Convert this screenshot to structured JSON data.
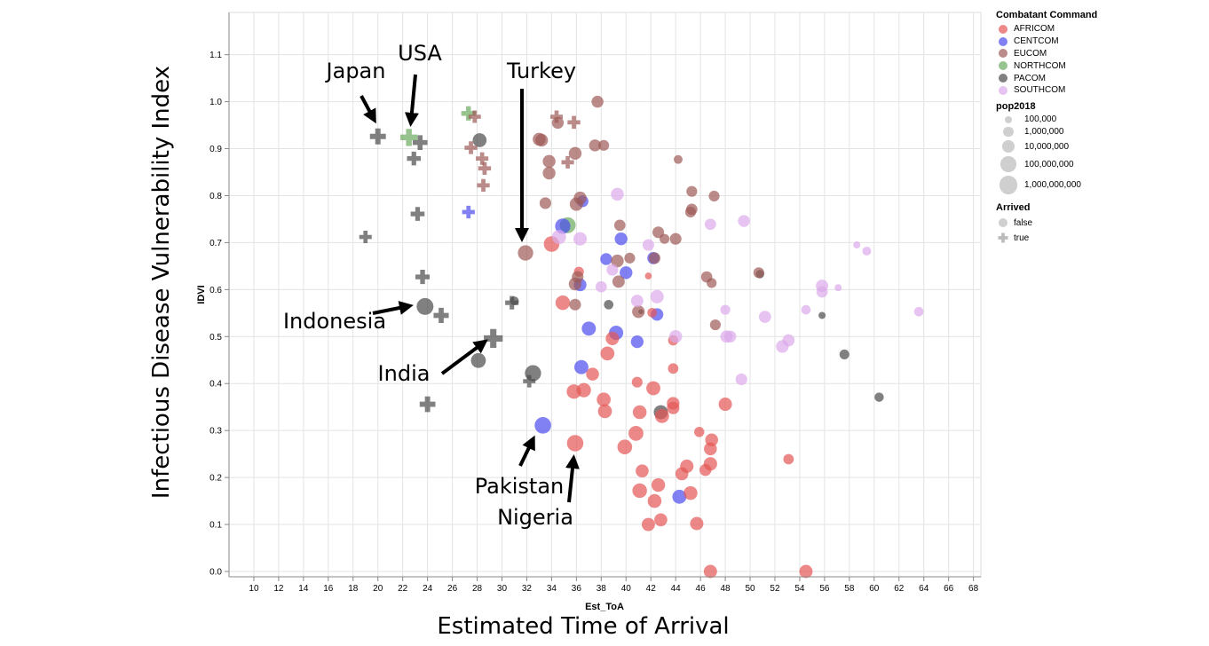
{
  "chart_data": {
    "type": "scatter",
    "xlabel": "Est_ToA",
    "ylabel": "IDVI",
    "xlim": [
      8,
      68.6
    ],
    "ylim": [
      0,
      1.19
    ],
    "xticks": [
      10,
      12,
      14,
      16,
      18,
      20,
      22,
      24,
      26,
      28,
      30,
      32,
      34,
      36,
      38,
      40,
      42,
      44,
      46,
      48,
      50,
      52,
      54,
      56,
      58,
      60,
      62,
      64,
      66,
      68
    ],
    "yticks": [
      "0.0",
      "0.1",
      "0.2",
      "0.3",
      "0.4",
      "0.5",
      "0.6",
      "0.7",
      "0.8",
      "0.9",
      "1.0",
      "1.1"
    ],
    "grid": true,
    "legend_position": "right",
    "color_legend": {
      "title": "Combatant Command",
      "items": [
        {
          "name": "AFRICOM",
          "color": "#e45756"
        },
        {
          "name": "CENTCOM",
          "color": "#4c4cf0"
        },
        {
          "name": "EUCOM",
          "color": "#9c5a55"
        },
        {
          "name": "NORTHCOM",
          "color": "#6aaa5e"
        },
        {
          "name": "PACOM",
          "color": "#4a4a4a"
        },
        {
          "name": "SOUTHCOM",
          "color": "#dcaaea"
        }
      ]
    },
    "size_legend": {
      "title": "pop2018",
      "items": [
        {
          "label": "100,000",
          "value": 100000
        },
        {
          "label": "1,000,000",
          "value": 1000000
        },
        {
          "label": "10,000,000",
          "value": 10000000
        },
        {
          "label": "100,000,000",
          "value": 100000000
        },
        {
          "label": "1,000,000,000",
          "value": 1000000000
        }
      ]
    },
    "shape_legend": {
      "title": "Arrived",
      "items": [
        {
          "label": "false",
          "shape": "circle"
        },
        {
          "label": "true",
          "shape": "cross"
        }
      ]
    },
    "fields": [
      "command",
      "Est_ToA",
      "IDVI",
      "pop2018",
      "arrived"
    ],
    "points": [
      [
        "PACOM",
        20.0,
        0.926,
        126000000,
        true
      ],
      [
        "PACOM",
        23.4,
        0.913,
        51000000,
        true
      ],
      [
        "PACOM",
        22.9,
        0.879,
        23000000,
        true
      ],
      [
        "PACOM",
        23.2,
        0.761,
        24000000,
        true
      ],
      [
        "PACOM",
        19.0,
        0.712,
        5700000,
        true
      ],
      [
        "PACOM",
        23.6,
        0.627,
        32000000,
        true
      ],
      [
        "PACOM",
        25.1,
        0.545,
        69000000,
        true
      ],
      [
        "PACOM",
        29.3,
        0.496,
        1350000000,
        true
      ],
      [
        "PACOM",
        30.8,
        0.572,
        17000000,
        true
      ],
      [
        "PACOM",
        32.2,
        0.405,
        6000000,
        true
      ],
      [
        "PACOM",
        24.0,
        0.356,
        106000000,
        true
      ],
      [
        "PACOM",
        28.2,
        0.918,
        25000000,
        false
      ],
      [
        "PACOM",
        23.8,
        0.564,
        267000000,
        false
      ],
      [
        "PACOM",
        28.1,
        0.449,
        54000000,
        false
      ],
      [
        "PACOM",
        31.0,
        0.576,
        400000,
        false
      ],
      [
        "PACOM",
        32.5,
        0.422,
        160000000,
        false
      ],
      [
        "PACOM",
        38.6,
        0.568,
        700000,
        false
      ],
      [
        "PACOM",
        42.8,
        0.339,
        29000000,
        false
      ],
      [
        "PACOM",
        41.2,
        0.553,
        20000,
        false
      ],
      [
        "PACOM",
        55.8,
        0.545,
        100000,
        false
      ],
      [
        "PACOM",
        57.6,
        0.462,
        900000,
        false
      ],
      [
        "PACOM",
        60.4,
        0.371,
        600000,
        false
      ],
      [
        "PACOM",
        50.8,
        0.633,
        300000,
        false
      ],
      [
        "NORTHCOM",
        22.5,
        0.924,
        327000000,
        true
      ],
      [
        "NORTHCOM",
        27.3,
        0.975,
        37000000,
        true
      ],
      [
        "NORTHCOM",
        35.3,
        0.737,
        126000000,
        false
      ],
      [
        "CENTCOM",
        27.3,
        0.765,
        9000000,
        true
      ],
      [
        "CENTCOM",
        34.9,
        0.735,
        80000000,
        false
      ],
      [
        "CENTCOM",
        36.5,
        0.788,
        4000000,
        false
      ],
      [
        "CENTCOM",
        33.3,
        0.311,
        212000000,
        false
      ],
      [
        "CENTCOM",
        36.3,
        0.61,
        9000000,
        false
      ],
      [
        "CENTCOM",
        36.4,
        0.435,
        30000000,
        false
      ],
      [
        "CENTCOM",
        37.0,
        0.517,
        30000000,
        false
      ],
      [
        "CENTCOM",
        39.6,
        0.708,
        10000000,
        false
      ],
      [
        "CENTCOM",
        40.0,
        0.636,
        10000000,
        false
      ],
      [
        "CENTCOM",
        38.4,
        0.665,
        5000000,
        false
      ],
      [
        "CENTCOM",
        39.2,
        0.508,
        33000000,
        false
      ],
      [
        "CENTCOM",
        40.9,
        0.489,
        9000000,
        false
      ],
      [
        "CENTCOM",
        42.5,
        0.547,
        8000000,
        false
      ],
      [
        "CENTCOM",
        42.2,
        0.667,
        6000000,
        false
      ],
      [
        "CENTCOM",
        44.3,
        0.159,
        28000000,
        false
      ],
      [
        "AFRICOM",
        34.0,
        0.697,
        98000000,
        false
      ],
      [
        "AFRICOM",
        34.9,
        0.572,
        42000000,
        false
      ],
      [
        "AFRICOM",
        36.2,
        0.638,
        1000000,
        false
      ],
      [
        "AFRICOM",
        35.8,
        0.383,
        40000000,
        false
      ],
      [
        "AFRICOM",
        36.6,
        0.386,
        34000000,
        false
      ],
      [
        "AFRICOM",
        37.3,
        0.42,
        11000000,
        false
      ],
      [
        "AFRICOM",
        35.9,
        0.273,
        196000000,
        false
      ],
      [
        "AFRICOM",
        38.5,
        0.464,
        25000000,
        false
      ],
      [
        "AFRICOM",
        38.9,
        0.496,
        16000000,
        false
      ],
      [
        "AFRICOM",
        38.2,
        0.366,
        25000000,
        false
      ],
      [
        "AFRICOM",
        38.3,
        0.341,
        25000000,
        false
      ],
      [
        "AFRICOM",
        39.9,
        0.265,
        50000000,
        false
      ],
      [
        "AFRICOM",
        40.8,
        0.294,
        56000000,
        false
      ],
      [
        "AFRICOM",
        40.9,
        0.403,
        2000000,
        false
      ],
      [
        "AFRICOM",
        41.1,
        0.339,
        23000000,
        false
      ],
      [
        "AFRICOM",
        41.3,
        0.214,
        12000000,
        false
      ],
      [
        "AFRICOM",
        41.1,
        0.172,
        43000000,
        false
      ],
      [
        "AFRICOM",
        41.8,
        0.1,
        15000000,
        false
      ],
      [
        "AFRICOM",
        42.2,
        0.39,
        28000000,
        false
      ],
      [
        "AFRICOM",
        42.3,
        0.15,
        23000000,
        false
      ],
      [
        "AFRICOM",
        42.6,
        0.184,
        20000000,
        false
      ],
      [
        "AFRICOM",
        42.8,
        0.11,
        12000000,
        false
      ],
      [
        "AFRICOM",
        42.9,
        0.331,
        30000000,
        false
      ],
      [
        "AFRICOM",
        43.8,
        0.358,
        9000000,
        false
      ],
      [
        "AFRICOM",
        43.8,
        0.348,
        8000000,
        false
      ],
      [
        "AFRICOM",
        43.8,
        0.432,
        1500000,
        false
      ],
      [
        "AFRICOM",
        43.8,
        0.492,
        1300000,
        false
      ],
      [
        "AFRICOM",
        44.5,
        0.208,
        12000000,
        false
      ],
      [
        "AFRICOM",
        44.9,
        0.224,
        16000000,
        false
      ],
      [
        "AFRICOM",
        45.2,
        0.167,
        22000000,
        false
      ],
      [
        "AFRICOM",
        45.7,
        0.102,
        15000000,
        false
      ],
      [
        "AFRICOM",
        45.9,
        0.297,
        1200000,
        false
      ],
      [
        "AFRICOM",
        46.4,
        0.216,
        5000000,
        false
      ],
      [
        "AFRICOM",
        46.8,
        0.229,
        17000000,
        false
      ],
      [
        "AFRICOM",
        46.8,
        0.261,
        11000000,
        false
      ],
      [
        "AFRICOM",
        46.9,
        0.28,
        11000000,
        false
      ],
      [
        "AFRICOM",
        48.0,
        0.356,
        16000000,
        false
      ],
      [
        "AFRICOM",
        46.8,
        0.0,
        15000000,
        false
      ],
      [
        "AFRICOM",
        54.5,
        0.0,
        15000000,
        false
      ],
      [
        "AFRICOM",
        53.1,
        0.239,
        1500000,
        false
      ],
      [
        "AFRICOM",
        41.8,
        0.629,
        80000,
        false
      ],
      [
        "AFRICOM",
        42.1,
        0.551,
        700000,
        false
      ],
      [
        "EUCOM",
        27.8,
        0.968,
        7000000,
        true
      ],
      [
        "EUCOM",
        27.5,
        0.902,
        10000000,
        true
      ],
      [
        "EUCOM",
        28.4,
        0.879,
        8000000,
        true
      ],
      [
        "EUCOM",
        28.6,
        0.858,
        10000000,
        true
      ],
      [
        "EUCOM",
        28.5,
        0.822,
        9000000,
        true
      ],
      [
        "EUCOM",
        34.4,
        0.968,
        5000000,
        true
      ],
      [
        "EUCOM",
        35.8,
        0.956,
        10000000,
        true
      ],
      [
        "EUCOM",
        35.3,
        0.871,
        8000000,
        true
      ],
      [
        "EUCOM",
        37.7,
        1.0,
        5000000,
        false
      ],
      [
        "EUCOM",
        34.5,
        0.955,
        5000000,
        false
      ],
      [
        "EUCOM",
        33.0,
        0.92,
        11000000,
        false
      ],
      [
        "EUCOM",
        33.2,
        0.918,
        9000000,
        false
      ],
      [
        "EUCOM",
        33.8,
        0.873,
        10000000,
        false
      ],
      [
        "EUCOM",
        35.9,
        0.89,
        10000000,
        false
      ],
      [
        "EUCOM",
        37.5,
        0.907,
        5000000,
        false
      ],
      [
        "EUCOM",
        38.2,
        0.907,
        2000000,
        false
      ],
      [
        "EUCOM",
        33.8,
        0.848,
        10000000,
        false
      ],
      [
        "EUCOM",
        33.5,
        0.784,
        4000000,
        false
      ],
      [
        "EUCOM",
        36.0,
        0.782,
        16000000,
        false
      ],
      [
        "EUCOM",
        36.3,
        0.795,
        10000000,
        false
      ],
      [
        "EUCOM",
        31.9,
        0.678,
        82000000,
        false
      ],
      [
        "EUCOM",
        35.9,
        0.612,
        10000000,
        false
      ],
      [
        "EUCOM",
        36.1,
        0.627,
        4000000,
        false
      ],
      [
        "EUCOM",
        35.9,
        0.568,
        4000000,
        false
      ],
      [
        "EUCOM",
        39.5,
        0.737,
        3000000,
        false
      ],
      [
        "EUCOM",
        39.3,
        0.661,
        10000000,
        false
      ],
      [
        "EUCOM",
        39.4,
        0.617,
        7000000,
        false
      ],
      [
        "EUCOM",
        40.3,
        0.667,
        2000000,
        false
      ],
      [
        "EUCOM",
        41.0,
        0.553,
        9000000,
        false
      ],
      [
        "EUCOM",
        42.6,
        0.722,
        4000000,
        false
      ],
      [
        "EUCOM",
        43.1,
        0.708,
        1000000,
        false
      ],
      [
        "EUCOM",
        44.0,
        0.708,
        4000000,
        false
      ],
      [
        "EUCOM",
        42.3,
        0.667,
        4000000,
        false
      ],
      [
        "EUCOM",
        44.2,
        0.877,
        400000,
        false
      ],
      [
        "EUCOM",
        45.3,
        0.809,
        2000000,
        false
      ],
      [
        "EUCOM",
        45.3,
        0.771,
        3000000,
        false
      ],
      [
        "EUCOM",
        45.2,
        0.765,
        2000000,
        false
      ],
      [
        "EUCOM",
        47.1,
        0.799,
        2000000,
        false
      ],
      [
        "EUCOM",
        46.5,
        0.627,
        3000000,
        false
      ],
      [
        "EUCOM",
        46.9,
        0.614,
        1000000,
        false
      ],
      [
        "EUCOM",
        47.2,
        0.525,
        2000000,
        false
      ],
      [
        "EUCOM",
        50.7,
        0.636,
        2000000,
        false
      ],
      [
        "SOUTHCOM",
        39.3,
        0.803,
        10000000,
        false
      ],
      [
        "SOUTHCOM",
        34.6,
        0.712,
        30000000,
        false
      ],
      [
        "SOUTHCOM",
        36.3,
        0.708,
        17000000,
        false
      ],
      [
        "SOUTHCOM",
        38.0,
        0.606,
        3000000,
        false
      ],
      [
        "SOUTHCOM",
        38.9,
        0.642,
        4000000,
        false
      ],
      [
        "SOUTHCOM",
        41.8,
        0.695,
        4000000,
        false
      ],
      [
        "SOUTHCOM",
        40.9,
        0.576,
        7000000,
        false
      ],
      [
        "SOUTHCOM",
        42.5,
        0.585,
        17000000,
        false
      ],
      [
        "SOUTHCOM",
        44.0,
        0.5,
        11000000,
        false
      ],
      [
        "SOUTHCOM",
        46.8,
        0.739,
        3000000,
        false
      ],
      [
        "SOUTHCOM",
        49.5,
        0.746,
        5000000,
        false
      ],
      [
        "SOUTHCOM",
        48.0,
        0.557,
        1000000,
        false
      ],
      [
        "SOUTHCOM",
        48.1,
        0.5,
        7000000,
        false
      ],
      [
        "SOUTHCOM",
        48.4,
        0.5,
        5000000,
        false
      ],
      [
        "SOUTHCOM",
        49.3,
        0.409,
        4000000,
        false
      ],
      [
        "SOUTHCOM",
        51.2,
        0.542,
        6000000,
        false
      ],
      [
        "SOUTHCOM",
        52.6,
        0.479,
        9000000,
        false
      ],
      [
        "SOUTHCOM",
        53.1,
        0.492,
        6000000,
        false
      ],
      [
        "SOUTHCOM",
        54.5,
        0.557,
        700000,
        false
      ],
      [
        "SOUTHCOM",
        55.8,
        0.608,
        7000000,
        false
      ],
      [
        "SOUTHCOM",
        55.8,
        0.595,
        3000000,
        false
      ],
      [
        "SOUTHCOM",
        57.1,
        0.604,
        100000,
        false
      ],
      [
        "SOUTHCOM",
        58.6,
        0.695,
        100000,
        false
      ],
      [
        "SOUTHCOM",
        59.4,
        0.682,
        400000,
        false
      ],
      [
        "SOUTHCOM",
        63.6,
        0.553,
        700000,
        false
      ]
    ]
  },
  "annotations": {
    "japan": "Japan",
    "usa": "USA",
    "turkey": "Turkey",
    "indonesia": "Indonesia",
    "india": "India",
    "pakistan": "Pakistan",
    "nigeria": "Nigeria"
  },
  "outer_titles": {
    "y": "Infectious Disease Vulnerability Index",
    "x": "Estimated Time of Arrival"
  }
}
